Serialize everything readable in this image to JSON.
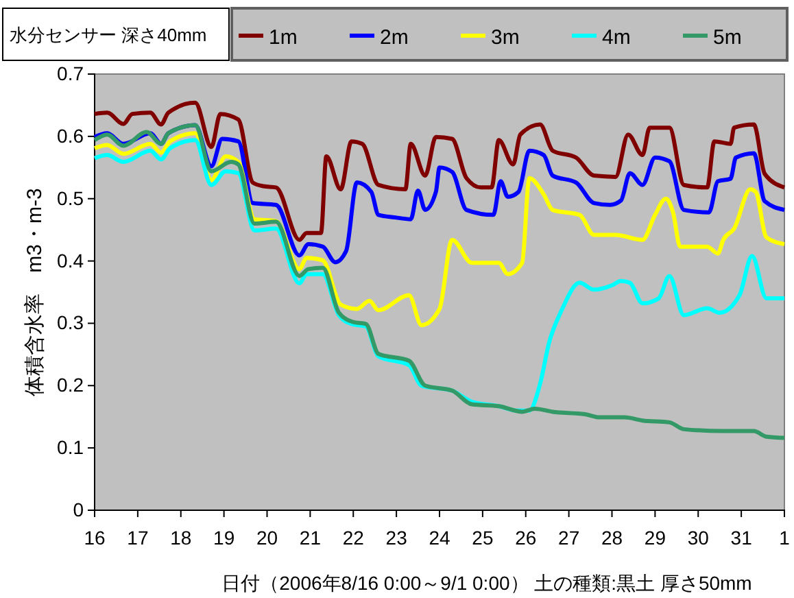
{
  "chart_data": {
    "type": "line",
    "xlabel": "日付（2006年8/16 0:00～9/1 0:00） 土の種類:黒土  厚さ50mm",
    "ylabel": "体積含水率　m3・m-3",
    "legend_title": "水分センサー 深さ40mm",
    "legend": "top",
    "grid": false,
    "marker": "none",
    "line_style": "solid",
    "xlim": [
      "2006-08-16",
      "2006-09-01"
    ],
    "xticks": [
      {
        "value": "2006-08-16",
        "label": "16"
      },
      {
        "value": "2006-08-17",
        "label": "17"
      },
      {
        "value": "2006-08-18",
        "label": "18"
      },
      {
        "value": "2006-08-19",
        "label": "19"
      },
      {
        "value": "2006-08-20",
        "label": "20"
      },
      {
        "value": "2006-08-21",
        "label": "21"
      },
      {
        "value": "2006-08-22",
        "label": "22"
      },
      {
        "value": "2006-08-23",
        "label": "23"
      },
      {
        "value": "2006-08-24",
        "label": "24"
      },
      {
        "value": "2006-08-25",
        "label": "25"
      },
      {
        "value": "2006-08-26",
        "label": "26"
      },
      {
        "value": "2006-08-27",
        "label": "27"
      },
      {
        "value": "2006-08-28",
        "label": "28"
      },
      {
        "value": "2006-08-29",
        "label": "29"
      },
      {
        "value": "2006-08-30",
        "label": "30"
      },
      {
        "value": "2006-08-31",
        "label": "31"
      },
      {
        "value": "2006-09-01",
        "label": "1"
      }
    ],
    "ylim": [
      0,
      0.7
    ],
    "yticks": [
      0,
      0.1,
      0.2,
      0.3,
      0.4,
      0.5,
      0.6,
      0.7
    ],
    "series": [
      {
        "name": "1m",
        "color": "#800000",
        "x": [
          "2006-08-16T00:00",
          "2006-08-16T07:00",
          "2006-08-16T16:00",
          "2006-08-16T21:00",
          "2006-08-17T07:00",
          "2006-08-17T13:00",
          "2006-08-17T17:00",
          "2006-08-18T08:00",
          "2006-08-18T17:00",
          "2006-08-18T22:00",
          "2006-08-19T08:00",
          "2006-08-19T16:00",
          "2006-08-19T22:00",
          "2006-08-20T05:00",
          "2006-08-20T18:00",
          "2006-08-20T22:00",
          "2006-08-21T06:00",
          "2006-08-21T09:00",
          "2006-08-21T17:00",
          "2006-08-21T23:00",
          "2006-08-22T05:00",
          "2006-08-22T14:00",
          "2006-08-23T05:00",
          "2006-08-23T08:00",
          "2006-08-23T16:00",
          "2006-08-23T22:00",
          "2006-08-24T07:00",
          "2006-08-24T15:00",
          "2006-08-24T23:00",
          "2006-08-25T05:00",
          "2006-08-25T09:00",
          "2006-08-25T17:00",
          "2006-08-25T21:00",
          "2006-08-26T08:00",
          "2006-08-26T15:00",
          "2006-08-27T04:00",
          "2006-08-27T14:00",
          "2006-08-28T02:00",
          "2006-08-28T09:00",
          "2006-08-28T17:00",
          "2006-08-28T21:00",
          "2006-08-29T08:00",
          "2006-08-29T16:00",
          "2006-08-30T05:00",
          "2006-08-30T09:00",
          "2006-08-30T18:00",
          "2006-08-30T20:00",
          "2006-08-31T07:00",
          "2006-08-31T13:00",
          "2006-09-01T00:00"
        ],
        "values": [
          0.636,
          0.638,
          0.62,
          0.636,
          0.638,
          0.619,
          0.638,
          0.654,
          0.583,
          0.636,
          0.627,
          0.526,
          0.52,
          0.518,
          0.434,
          0.445,
          0.445,
          0.568,
          0.515,
          0.592,
          0.588,
          0.522,
          0.515,
          0.588,
          0.537,
          0.599,
          0.596,
          0.533,
          0.518,
          0.518,
          0.594,
          0.555,
          0.603,
          0.619,
          0.577,
          0.566,
          0.537,
          0.535,
          0.603,
          0.57,
          0.614,
          0.614,
          0.522,
          0.518,
          0.592,
          0.588,
          0.614,
          0.619,
          0.54,
          0.518
        ]
      },
      {
        "name": "2m",
        "color": "#0000ff",
        "x": [
          "2006-08-16T00:00",
          "2006-08-16T07:00",
          "2006-08-16T16:00",
          "2006-08-17T07:00",
          "2006-08-17T13:00",
          "2006-08-17T17:00",
          "2006-08-18T08:00",
          "2006-08-18T17:00",
          "2006-08-18T23:00",
          "2006-08-19T08:00",
          "2006-08-19T16:00",
          "2006-08-20T05:00",
          "2006-08-20T18:00",
          "2006-08-20T23:00",
          "2006-08-21T07:00",
          "2006-08-21T14:00",
          "2006-08-21T20:00",
          "2006-08-22T02:00",
          "2006-08-22T10:00",
          "2006-08-22T14:00",
          "2006-08-22T23:00",
          "2006-08-23T08:00",
          "2006-08-23T12:00",
          "2006-08-23T16:00",
          "2006-08-23T22:00",
          "2006-08-24T00:00",
          "2006-08-24T07:00",
          "2006-08-24T15:00",
          "2006-08-25T06:00",
          "2006-08-25T10:00",
          "2006-08-25T14:00",
          "2006-08-25T20:00",
          "2006-08-26T02:00",
          "2006-08-26T10:00",
          "2006-08-26T15:00",
          "2006-08-27T04:00",
          "2006-08-27T14:00",
          "2006-08-27T23:00",
          "2006-08-28T05:00",
          "2006-08-28T10:00",
          "2006-08-28T17:00",
          "2006-08-29T00:00",
          "2006-08-29T08:00",
          "2006-08-29T16:00",
          "2006-08-30T06:00",
          "2006-08-30T11:00",
          "2006-08-30T18:00",
          "2006-08-30T21:00",
          "2006-08-31T07:00",
          "2006-08-31T13:00",
          "2006-09-01T00:00"
        ],
        "values": [
          0.599,
          0.605,
          0.588,
          0.605,
          0.588,
          0.605,
          0.618,
          0.552,
          0.596,
          0.592,
          0.493,
          0.49,
          0.409,
          0.427,
          0.423,
          0.398,
          0.416,
          0.526,
          0.511,
          0.474,
          0.47,
          0.467,
          0.513,
          0.482,
          0.511,
          0.55,
          0.543,
          0.482,
          0.474,
          0.528,
          0.503,
          0.511,
          0.577,
          0.57,
          0.537,
          0.526,
          0.493,
          0.49,
          0.497,
          0.541,
          0.522,
          0.566,
          0.56,
          0.482,
          0.478,
          0.528,
          0.532,
          0.566,
          0.573,
          0.496,
          0.482
        ]
      },
      {
        "name": "3m",
        "color": "#ffff00",
        "x": [
          "2006-08-16T00:00",
          "2006-08-16T07:00",
          "2006-08-16T16:00",
          "2006-08-17T07:00",
          "2006-08-17T13:00",
          "2006-08-17T18:00",
          "2006-08-18T08:00",
          "2006-08-18T17:00",
          "2006-08-19T01:00",
          "2006-08-19T08:00",
          "2006-08-19T17:00",
          "2006-08-20T05:00",
          "2006-08-20T18:00",
          "2006-08-20T22:00",
          "2006-08-21T07:00",
          "2006-08-21T17:00",
          "2006-08-22T02:00",
          "2006-08-22T09:00",
          "2006-08-22T14:00",
          "2006-08-23T07:00",
          "2006-08-23T14:00",
          "2006-08-24T00:00",
          "2006-08-24T07:00",
          "2006-08-24T18:00",
          "2006-08-25T09:00",
          "2006-08-25T14:00",
          "2006-08-25T22:00",
          "2006-08-26T02:00",
          "2006-08-26T10:00",
          "2006-08-26T15:00",
          "2006-08-27T06:00",
          "2006-08-27T14:00",
          "2006-08-28T02:00",
          "2006-08-28T17:00",
          "2006-08-29T00:00",
          "2006-08-29T06:00",
          "2006-08-29T10:00",
          "2006-08-29T14:00",
          "2006-08-30T05:00",
          "2006-08-30T11:00",
          "2006-08-30T14:00",
          "2006-08-30T20:00",
          "2006-08-31T05:00",
          "2006-08-31T08:00",
          "2006-08-31T14:00",
          "2006-09-01T00:00"
        ],
        "values": [
          0.581,
          0.586,
          0.572,
          0.588,
          0.574,
          0.592,
          0.605,
          0.53,
          0.568,
          0.559,
          0.467,
          0.464,
          0.387,
          0.405,
          0.401,
          0.33,
          0.323,
          0.336,
          0.321,
          0.345,
          0.297,
          0.323,
          0.434,
          0.397,
          0.397,
          0.379,
          0.397,
          0.533,
          0.507,
          0.482,
          0.474,
          0.442,
          0.442,
          0.434,
          0.474,
          0.5,
          0.478,
          0.423,
          0.423,
          0.412,
          0.434,
          0.452,
          0.515,
          0.511,
          0.438,
          0.427
        ]
      },
      {
        "name": "4m",
        "color": "#00ffff",
        "x": [
          "2006-08-16T00:00",
          "2006-08-16T07:00",
          "2006-08-16T16:00",
          "2006-08-17T07:00",
          "2006-08-17T13:00",
          "2006-08-17T18:00",
          "2006-08-18T08:00",
          "2006-08-18T17:00",
          "2006-08-19T01:00",
          "2006-08-19T08:00",
          "2006-08-19T17:00",
          "2006-08-20T05:00",
          "2006-08-20T18:00",
          "2006-08-20T22:00",
          "2006-08-21T07:00",
          "2006-08-21T16:00",
          "2006-08-21T23:00",
          "2006-08-22T07:00",
          "2006-08-22T14:00",
          "2006-08-23T07:00",
          "2006-08-23T14:00",
          "2006-08-24T07:00",
          "2006-08-24T18:00",
          "2006-08-25T09:00",
          "2006-08-25T19:00",
          "2006-08-26T02:00",
          "2006-08-26T08:00",
          "2006-08-26T13:00",
          "2006-08-26T20:00",
          "2006-08-27T06:00",
          "2006-08-27T14:00",
          "2006-08-28T00:00",
          "2006-08-28T05:00",
          "2006-08-28T10:00",
          "2006-08-28T17:00",
          "2006-08-29T02:00",
          "2006-08-29T08:00",
          "2006-08-29T16:00",
          "2006-08-30T05:00",
          "2006-08-30T12:00",
          "2006-08-30T23:00",
          "2006-08-31T06:00",
          "2006-08-31T14:00",
          "2006-09-01T00:00"
        ],
        "values": [
          0.565,
          0.57,
          0.559,
          0.577,
          0.563,
          0.581,
          0.594,
          0.522,
          0.544,
          0.541,
          0.449,
          0.452,
          0.364,
          0.379,
          0.379,
          0.313,
          0.299,
          0.295,
          0.247,
          0.233,
          0.2,
          0.192,
          0.174,
          0.167,
          0.16,
          0.16,
          0.203,
          0.269,
          0.321,
          0.365,
          0.354,
          0.361,
          0.368,
          0.365,
          0.332,
          0.34,
          0.376,
          0.313,
          0.324,
          0.317,
          0.345,
          0.408,
          0.34,
          0.34
        ]
      },
      {
        "name": "5m",
        "color": "#339966",
        "x": [
          "2006-08-16T00:00",
          "2006-08-16T07:00",
          "2006-08-16T16:00",
          "2006-08-17T05:00",
          "2006-08-17T13:00",
          "2006-08-17T17:00",
          "2006-08-18T08:00",
          "2006-08-18T17:00",
          "2006-08-19T04:00",
          "2006-08-19T08:00",
          "2006-08-19T17:00",
          "2006-08-20T05:00",
          "2006-08-20T18:00",
          "2006-08-20T23:00",
          "2006-08-21T07:00",
          "2006-08-21T16:00",
          "2006-08-22T00:00",
          "2006-08-22T07:00",
          "2006-08-22T14:00",
          "2006-08-23T07:00",
          "2006-08-23T16:00",
          "2006-08-24T07:00",
          "2006-08-24T18:00",
          "2006-08-25T09:00",
          "2006-08-25T22:00",
          "2006-08-26T05:00",
          "2006-08-26T15:00",
          "2006-08-27T09:00",
          "2006-08-27T17:00",
          "2006-08-28T07:00",
          "2006-08-28T17:00",
          "2006-08-29T08:00",
          "2006-08-29T16:00",
          "2006-08-30T14:00",
          "2006-08-31T07:00",
          "2006-08-31T14:00",
          "2006-09-01T00:00"
        ],
        "values": [
          0.594,
          0.603,
          0.585,
          0.607,
          0.588,
          0.605,
          0.618,
          0.544,
          0.559,
          0.555,
          0.46,
          0.463,
          0.376,
          0.387,
          0.389,
          0.317,
          0.302,
          0.299,
          0.251,
          0.24,
          0.2,
          0.192,
          0.17,
          0.167,
          0.158,
          0.163,
          0.158,
          0.154,
          0.149,
          0.149,
          0.144,
          0.141,
          0.13,
          0.127,
          0.127,
          0.118,
          0.116
        ]
      }
    ]
  }
}
